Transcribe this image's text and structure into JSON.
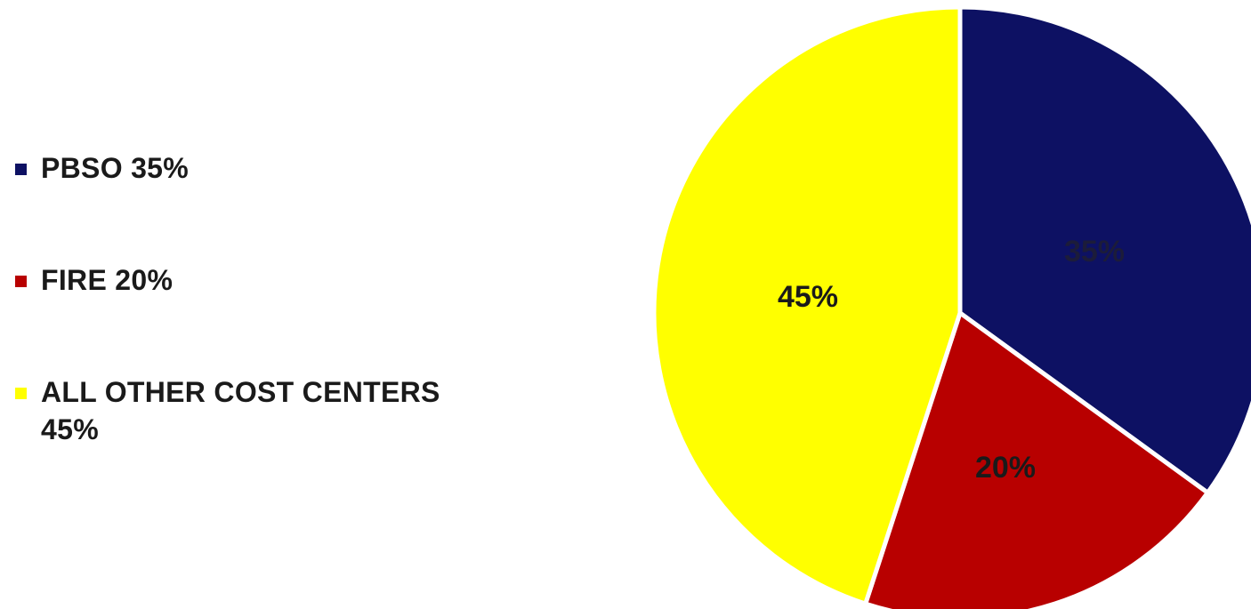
{
  "chart_data": {
    "type": "pie",
    "title": "",
    "legend_position": "left",
    "slices": [
      {
        "name": "PBSO",
        "legend_text": "PBSO 35%",
        "value": 35,
        "label": "35%",
        "color": "#0d1163",
        "label_color": "#1c1c3a"
      },
      {
        "name": "FIRE",
        "legend_text": "FIRE 20%",
        "value": 20,
        "label": "20%",
        "color": "#b80000",
        "label_color": "#1a1a1a"
      },
      {
        "name": "ALL OTHER COST CENTERS",
        "legend_text": "ALL OTHER COST CENTERS 45%",
        "value": 45,
        "label": "45%",
        "color": "#ffff00",
        "label_color": "#1a1a1a"
      }
    ]
  }
}
